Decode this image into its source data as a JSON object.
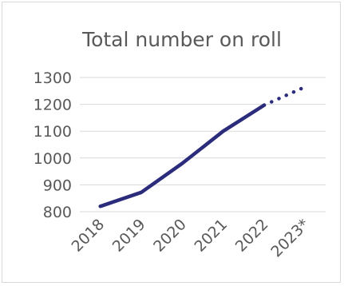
{
  "chart_data": {
    "type": "line",
    "title": "Total number on roll",
    "xlabel": "",
    "ylabel": "",
    "categories": [
      "2018",
      "2019",
      "2020",
      "2021",
      "2022",
      "2023*"
    ],
    "ylim": [
      800,
      1300
    ],
    "yticks": [
      800,
      900,
      1000,
      1100,
      1200,
      1300
    ],
    "grid": true,
    "legend": "none",
    "series": [
      {
        "values": [
          820,
          872,
          980,
          1100,
          1197,
          1265
        ],
        "color": "#2b2d7c",
        "style_note": "solid through 2022, dotted 2022 to 2023*"
      }
    ]
  }
}
